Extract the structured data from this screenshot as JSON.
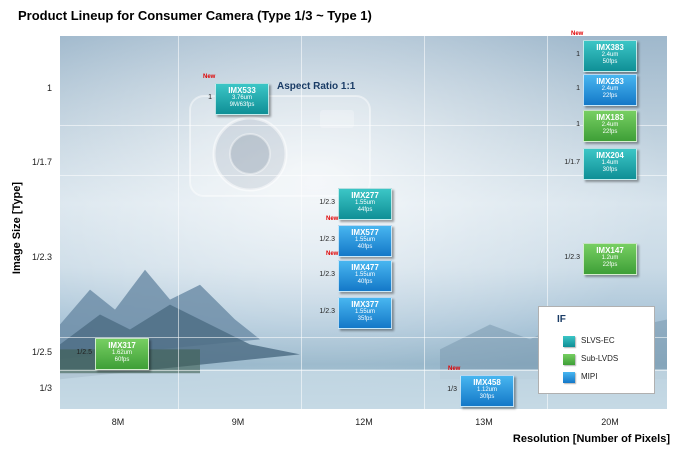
{
  "title": "Product Lineup for Consumer Camera (Type 1/3 ~ Type 1)",
  "annotation": "Aspect Ratio 1:1",
  "new_badge_text": "New",
  "chart_data": {
    "type": "table",
    "title": "Product Lineup for Consumer Camera (Type 1/3 ~ Type 1)",
    "xlabel": "Resolution  [Number of Pixels]",
    "ylabel": "Image Size [Type]",
    "x_categories": [
      "8M",
      "9M",
      "12M",
      "13M",
      "20M"
    ],
    "y_categories": [
      "1",
      "1/1.7",
      "1/2.3",
      "1/2.5",
      "1/3"
    ],
    "legend": {
      "title": "IF",
      "placement": "bottom-right",
      "entries": [
        {
          "label": "SLVS-EC",
          "color": "#1fa8ad"
        },
        {
          "label": "Sub-LVDS",
          "color": "#52b546"
        },
        {
          "label": "MIPI",
          "color": "#2394de"
        }
      ]
    },
    "items": [
      {
        "name": "IMX383",
        "size": "1",
        "resolution": "20M",
        "pixel": "2.4um",
        "rate": "50fps",
        "interface": "SLVS-EC",
        "new": true
      },
      {
        "name": "IMX283",
        "size": "1",
        "resolution": "20M",
        "pixel": "2.4um",
        "rate": "22fps",
        "interface": "MIPI",
        "new": false
      },
      {
        "name": "IMX183",
        "size": "1",
        "resolution": "20M",
        "pixel": "2.4um",
        "rate": "22fps",
        "interface": "Sub-LVDS",
        "new": false
      },
      {
        "name": "IMX533",
        "size": "1",
        "resolution": "9M",
        "pixel": "3.76um",
        "rate": "9M/63fps",
        "interface": "SLVS-EC",
        "new": true
      },
      {
        "name": "IMX204",
        "size": "1/1.7",
        "resolution": "20M",
        "pixel": "1.4um",
        "rate": "30fps",
        "interface": "SLVS-EC",
        "new": false
      },
      {
        "name": "IMX277",
        "size": "1/2.3",
        "resolution": "12M",
        "pixel": "1.55um",
        "rate": "44fps",
        "interface": "SLVS-EC",
        "new": false
      },
      {
        "name": "IMX577",
        "size": "1/2.3",
        "resolution": "12M",
        "pixel": "1.55um",
        "rate": "40fps",
        "interface": "MIPI",
        "new": true
      },
      {
        "name": "IMX477",
        "size": "1/2.3",
        "resolution": "12M",
        "pixel": "1.55um",
        "rate": "40fps",
        "interface": "MIPI",
        "new": true
      },
      {
        "name": "IMX377",
        "size": "1/2.3",
        "resolution": "12M",
        "pixel": "1.55um",
        "rate": "35fps",
        "interface": "MIPI",
        "new": false
      },
      {
        "name": "IMX147",
        "size": "1/2.3",
        "resolution": "20M",
        "pixel": "1.2um",
        "rate": "22fps",
        "interface": "Sub-LVDS",
        "new": false
      },
      {
        "name": "IMX317",
        "size": "1/2.5",
        "resolution": "8M",
        "pixel": "1.62um",
        "rate": "60fps",
        "interface": "Sub-LVDS",
        "new": false
      },
      {
        "name": "IMX458",
        "size": "1/3",
        "resolution": "13M",
        "pixel": "1.12um",
        "rate": "30fps",
        "interface": "MIPI",
        "new": true
      }
    ]
  }
}
